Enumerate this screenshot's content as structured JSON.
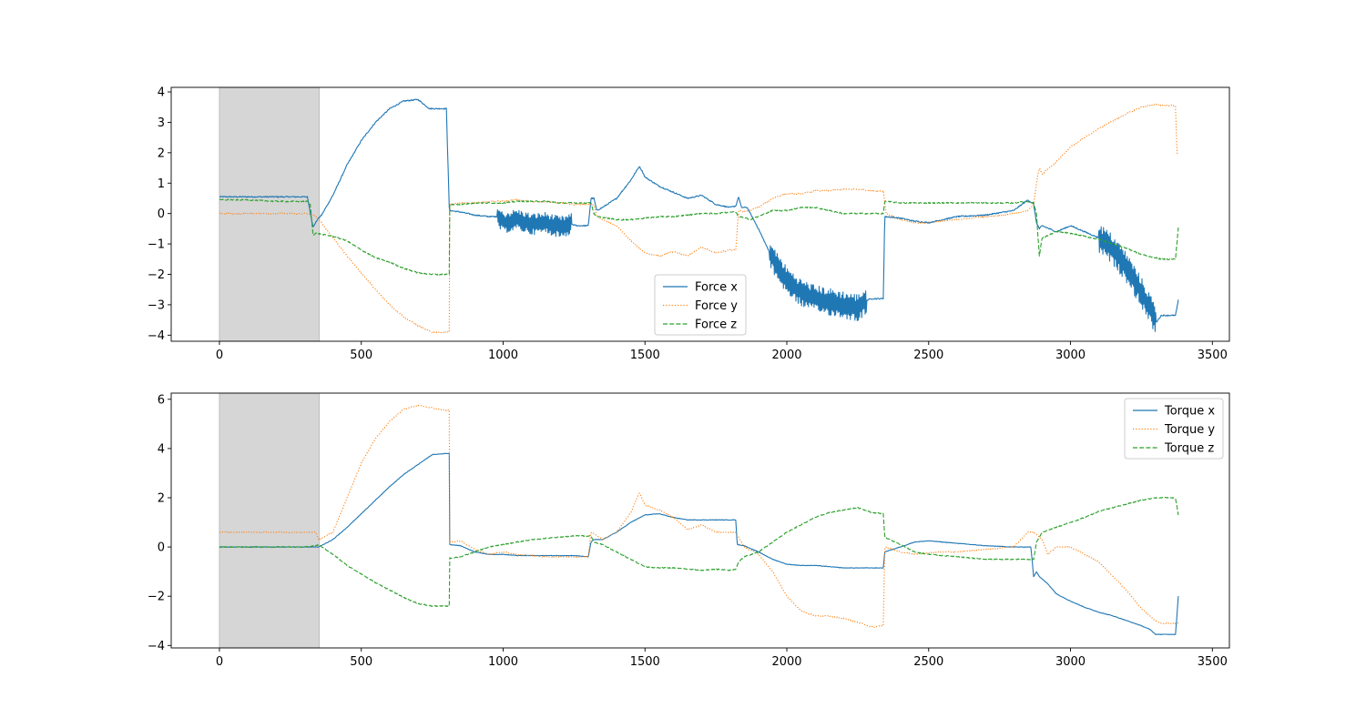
{
  "colors": {
    "x": "#1f77b4",
    "y": "#ff7f0e",
    "z": "#2ca02c",
    "shade": "#d6d6d6"
  },
  "chart_data": [
    {
      "type": "line",
      "title": "",
      "xlabel": "",
      "ylabel": "",
      "xlim": [
        -170,
        3560
      ],
      "ylim": [
        -4.2,
        4.15
      ],
      "xticks": [
        0,
        500,
        1000,
        1500,
        2000,
        2500,
        3000,
        3500
      ],
      "yticks": [
        -4,
        -3,
        -2,
        -1,
        0,
        1,
        2,
        3,
        4
      ],
      "shaded_region": [
        0,
        352
      ],
      "legend_position": "lower-center",
      "series": [
        {
          "name": "Force x",
          "style": "solid",
          "color_key": "x",
          "noise": 0.02,
          "x": [
            0,
            100,
            200,
            300,
            310,
            330,
            345,
            360,
            400,
            450,
            500,
            550,
            600,
            650,
            700,
            740,
            760,
            800,
            810,
            812,
            850,
            900,
            950,
            980,
            1000,
            1050,
            1100,
            1150,
            1200,
            1240,
            1260,
            1300,
            1310,
            1320,
            1330,
            1350,
            1400,
            1450,
            1480,
            1490,
            1500,
            1550,
            1600,
            1650,
            1700,
            1750,
            1800,
            1820,
            1830,
            1840,
            1860,
            1900,
            1950,
            2000,
            2050,
            2100,
            2150,
            2200,
            2250,
            2280,
            2300,
            2340,
            2345,
            2400,
            2450,
            2500,
            2550,
            2600,
            2700,
            2800,
            2850,
            2870,
            2880,
            2890,
            2900,
            2950,
            3000,
            3050,
            3100,
            3150,
            3200,
            3250,
            3290,
            3300,
            3320,
            3370,
            3380
          ],
          "y": [
            0.55,
            0.55,
            0.55,
            0.55,
            0.55,
            -0.45,
            -0.2,
            -0.05,
            0.6,
            1.6,
            2.4,
            3.0,
            3.45,
            3.7,
            3.75,
            3.45,
            3.45,
            3.45,
            0.2,
            0.1,
            0.05,
            -0.05,
            -0.1,
            -0.1,
            -0.3,
            -0.2,
            -0.35,
            -0.3,
            -0.45,
            -0.35,
            -0.4,
            -0.4,
            0.5,
            0.5,
            0.1,
            0.2,
            0.5,
            1.1,
            1.55,
            1.4,
            1.2,
            0.9,
            0.7,
            0.5,
            0.6,
            0.3,
            0.2,
            0.25,
            0.55,
            0.2,
            0.2,
            -0.5,
            -1.5,
            -2.2,
            -2.6,
            -2.8,
            -2.9,
            -3.0,
            -3.1,
            -2.85,
            -2.8,
            -2.8,
            -0.1,
            -0.15,
            -0.25,
            -0.3,
            -0.2,
            -0.1,
            -0.05,
            0.1,
            0.45,
            0.3,
            -0.3,
            -0.5,
            -0.4,
            -0.6,
            -0.4,
            -0.6,
            -0.8,
            -1.2,
            -1.8,
            -2.6,
            -3.3,
            -3.6,
            -3.35,
            -3.35,
            -2.85
          ],
          "jitter": [
            [
              980,
              1240,
              0.35
            ],
            [
              1940,
              2280,
              0.45
            ],
            [
              3100,
              3300,
              0.5
            ]
          ]
        },
        {
          "name": "Force y",
          "style": "dotted",
          "color_key": "y",
          "noise": 0.02,
          "x": [
            0,
            100,
            200,
            300,
            310,
            340,
            360,
            400,
            450,
            500,
            550,
            600,
            650,
            700,
            750,
            800,
            810,
            812,
            850,
            900,
            950,
            1000,
            1050,
            1100,
            1150,
            1200,
            1250,
            1300,
            1310,
            1320,
            1330,
            1350,
            1400,
            1450,
            1500,
            1550,
            1600,
            1650,
            1700,
            1750,
            1800,
            1820,
            1830,
            1850,
            1900,
            1950,
            2000,
            2050,
            2100,
            2150,
            2200,
            2250,
            2300,
            2340,
            2350,
            2400,
            2450,
            2500,
            2600,
            2700,
            2800,
            2850,
            2870,
            2880,
            2890,
            2900,
            2950,
            3000,
            3050,
            3100,
            3150,
            3200,
            3250,
            3300,
            3320,
            3370,
            3375,
            3380
          ],
          "y": [
            0.0,
            0.0,
            0.0,
            0.0,
            0.0,
            -0.1,
            -0.3,
            -0.8,
            -1.4,
            -1.95,
            -2.5,
            -3.0,
            -3.4,
            -3.7,
            -3.9,
            -3.9,
            -3.9,
            0.3,
            0.35,
            0.35,
            0.4,
            0.4,
            0.45,
            0.4,
            0.4,
            0.35,
            0.3,
            0.3,
            0.3,
            0.3,
            -0.1,
            -0.2,
            -0.4,
            -0.9,
            -1.3,
            -1.4,
            -1.25,
            -1.4,
            -1.1,
            -1.3,
            -1.2,
            -1.2,
            0.1,
            0.05,
            0.2,
            0.5,
            0.65,
            0.65,
            0.75,
            0.75,
            0.8,
            0.8,
            0.75,
            0.75,
            0.0,
            -0.2,
            -0.3,
            -0.3,
            -0.2,
            -0.1,
            0.0,
            0.1,
            0.3,
            1.0,
            1.5,
            1.3,
            1.7,
            2.2,
            2.5,
            2.8,
            3.05,
            3.3,
            3.5,
            3.6,
            3.55,
            3.55,
            2.0,
            1.95
          ]
        },
        {
          "name": "Force z",
          "style": "dashed",
          "color_key": "z",
          "noise": 0.02,
          "x": [
            0,
            100,
            200,
            300,
            310,
            320,
            330,
            340,
            400,
            450,
            500,
            550,
            600,
            650,
            700,
            750,
            800,
            810,
            812,
            850,
            900,
            950,
            1000,
            1050,
            1100,
            1150,
            1200,
            1250,
            1300,
            1310,
            1320,
            1330,
            1400,
            1450,
            1500,
            1550,
            1600,
            1650,
            1700,
            1750,
            1800,
            1820,
            1830,
            1840,
            1870,
            1900,
            1950,
            2000,
            2050,
            2100,
            2150,
            2200,
            2250,
            2300,
            2340,
            2345,
            2400,
            2500,
            2600,
            2700,
            2800,
            2850,
            2870,
            2880,
            2890,
            2900,
            2950,
            3000,
            3050,
            3100,
            3150,
            3200,
            3250,
            3300,
            3320,
            3370,
            3380
          ],
          "y": [
            0.45,
            0.45,
            0.4,
            0.4,
            0.4,
            0.3,
            -0.7,
            -0.65,
            -0.75,
            -0.9,
            -1.2,
            -1.45,
            -1.6,
            -1.8,
            -1.95,
            -2.0,
            -2.0,
            -2.0,
            0.3,
            0.3,
            0.35,
            0.35,
            0.35,
            0.4,
            0.4,
            0.4,
            0.35,
            0.35,
            0.35,
            0.35,
            0.0,
            -0.1,
            -0.2,
            -0.2,
            -0.15,
            -0.1,
            -0.1,
            -0.05,
            0.0,
            0.0,
            0.05,
            0.05,
            -0.1,
            -0.1,
            -0.2,
            -0.1,
            0.1,
            0.1,
            0.2,
            0.2,
            0.1,
            0.0,
            0.0,
            0.0,
            0.0,
            0.4,
            0.35,
            0.35,
            0.35,
            0.35,
            0.35,
            0.4,
            0.35,
            0.0,
            -1.4,
            -0.8,
            -0.6,
            -0.65,
            -0.75,
            -0.85,
            -1.0,
            -1.15,
            -1.35,
            -1.45,
            -1.5,
            -1.5,
            -0.45
          ]
        }
      ]
    },
    {
      "type": "line",
      "title": "",
      "xlabel": "",
      "ylabel": "",
      "xlim": [
        -170,
        3560
      ],
      "ylim": [
        -4.1,
        6.25
      ],
      "xticks": [
        0,
        500,
        1000,
        1500,
        2000,
        2500,
        3000,
        3500
      ],
      "yticks": [
        -4,
        -2,
        0,
        2,
        4,
        6
      ],
      "shaded_region": [
        0,
        352
      ],
      "legend_position": "upper-right",
      "series": [
        {
          "name": "Torque x",
          "style": "solid",
          "color_key": "x",
          "noise": 0.01,
          "x": [
            0,
            100,
            200,
            300,
            340,
            350,
            400,
            450,
            500,
            550,
            600,
            650,
            700,
            750,
            800,
            810,
            812,
            850,
            900,
            950,
            1000,
            1050,
            1100,
            1150,
            1200,
            1250,
            1300,
            1310,
            1320,
            1350,
            1400,
            1450,
            1500,
            1550,
            1600,
            1650,
            1700,
            1750,
            1800,
            1820,
            1825,
            1850,
            1900,
            1950,
            2000,
            2050,
            2100,
            2150,
            2200,
            2250,
            2300,
            2340,
            2345,
            2400,
            2450,
            2500,
            2550,
            2600,
            2700,
            2800,
            2850,
            2860,
            2870,
            2880,
            2890,
            2900,
            2920,
            2950,
            3000,
            3050,
            3100,
            3150,
            3200,
            3250,
            3280,
            3300,
            3320,
            3370,
            3380
          ],
          "y": [
            0.0,
            0.0,
            0.0,
            0.0,
            0.0,
            0.0,
            0.3,
            0.8,
            1.35,
            1.9,
            2.45,
            2.95,
            3.35,
            3.75,
            3.8,
            3.8,
            0.1,
            0.05,
            -0.2,
            -0.3,
            -0.3,
            -0.35,
            -0.35,
            -0.35,
            -0.35,
            -0.35,
            -0.4,
            0.2,
            0.3,
            0.3,
            0.6,
            1.0,
            1.3,
            1.35,
            1.2,
            1.1,
            1.1,
            1.1,
            1.1,
            1.1,
            0.1,
            0.05,
            -0.2,
            -0.5,
            -0.7,
            -0.75,
            -0.75,
            -0.8,
            -0.85,
            -0.85,
            -0.85,
            -0.85,
            -0.2,
            0.0,
            0.2,
            0.25,
            0.2,
            0.15,
            0.05,
            0.0,
            0.0,
            0.0,
            -1.2,
            -1.0,
            -1.2,
            -1.3,
            -1.5,
            -1.9,
            -2.2,
            -2.45,
            -2.65,
            -2.8,
            -3.0,
            -3.2,
            -3.35,
            -3.55,
            -3.55,
            -3.55,
            -2.0
          ]
        },
        {
          "name": "Torque y",
          "style": "dotted",
          "color_key": "y",
          "noise": 0.02,
          "x": [
            0,
            100,
            200,
            300,
            340,
            350,
            400,
            450,
            500,
            550,
            600,
            650,
            700,
            750,
            800,
            810,
            812,
            850,
            900,
            950,
            1000,
            1050,
            1100,
            1150,
            1200,
            1250,
            1300,
            1310,
            1320,
            1350,
            1400,
            1450,
            1480,
            1500,
            1550,
            1600,
            1650,
            1700,
            1750,
            1800,
            1820,
            1830,
            1850,
            1900,
            1950,
            2000,
            2050,
            2100,
            2150,
            2200,
            2250,
            2300,
            2340,
            2345,
            2400,
            2450,
            2500,
            2550,
            2600,
            2700,
            2800,
            2850,
            2870,
            2900,
            2920,
            2950,
            3000,
            3050,
            3100,
            3150,
            3200,
            3250,
            3300,
            3320,
            3370,
            3380
          ],
          "y": [
            0.6,
            0.6,
            0.6,
            0.6,
            0.6,
            0.3,
            0.6,
            2.0,
            3.4,
            4.4,
            5.1,
            5.6,
            5.75,
            5.65,
            5.55,
            5.55,
            0.2,
            0.25,
            -0.1,
            -0.3,
            -0.2,
            -0.3,
            -0.35,
            -0.4,
            -0.4,
            -0.4,
            -0.4,
            0.6,
            0.55,
            0.3,
            0.6,
            1.4,
            2.2,
            1.7,
            1.5,
            1.2,
            0.7,
            0.9,
            0.6,
            0.6,
            0.6,
            0.4,
            0.0,
            -0.3,
            -1.0,
            -2.0,
            -2.6,
            -2.8,
            -2.8,
            -2.9,
            -3.05,
            -3.25,
            -3.2,
            0.0,
            -0.2,
            -0.3,
            -0.25,
            -0.2,
            -0.2,
            -0.1,
            0.0,
            0.6,
            0.6,
            0.3,
            -0.3,
            0.0,
            0.0,
            -0.3,
            -0.6,
            -1.2,
            -1.8,
            -2.5,
            -3.0,
            -3.1,
            -3.1,
            -3.1
          ]
        },
        {
          "name": "Torque z",
          "style": "dashed",
          "color_key": "z",
          "noise": 0.02,
          "x": [
            0,
            100,
            200,
            300,
            340,
            350,
            400,
            450,
            500,
            550,
            600,
            650,
            700,
            750,
            800,
            810,
            812,
            850,
            900,
            950,
            1000,
            1050,
            1100,
            1150,
            1200,
            1250,
            1300,
            1310,
            1320,
            1350,
            1400,
            1450,
            1500,
            1550,
            1600,
            1650,
            1700,
            1750,
            1800,
            1820,
            1830,
            1850,
            1900,
            1950,
            2000,
            2050,
            2100,
            2150,
            2200,
            2250,
            2300,
            2340,
            2345,
            2400,
            2450,
            2500,
            2550,
            2600,
            2700,
            2800,
            2850,
            2870,
            2880,
            2900,
            2950,
            3000,
            3050,
            3100,
            3150,
            3200,
            3250,
            3300,
            3320,
            3370,
            3380
          ],
          "y": [
            0.0,
            0.0,
            0.0,
            0.0,
            0.05,
            0.1,
            -0.3,
            -0.75,
            -1.1,
            -1.45,
            -1.75,
            -2.05,
            -2.3,
            -2.4,
            -2.4,
            -2.4,
            -0.45,
            -0.4,
            -0.2,
            0.0,
            0.1,
            0.2,
            0.3,
            0.35,
            0.4,
            0.45,
            0.45,
            0.45,
            0.2,
            0.1,
            -0.2,
            -0.5,
            -0.8,
            -0.85,
            -0.85,
            -0.9,
            -0.95,
            -0.9,
            -0.95,
            -0.9,
            -0.6,
            -0.4,
            -0.2,
            0.2,
            0.6,
            0.9,
            1.2,
            1.4,
            1.5,
            1.6,
            1.4,
            1.35,
            0.4,
            0.1,
            -0.2,
            -0.3,
            -0.35,
            -0.4,
            -0.5,
            -0.5,
            -0.5,
            -0.5,
            0.2,
            0.6,
            0.8,
            1.0,
            1.2,
            1.45,
            1.6,
            1.75,
            1.9,
            2.0,
            2.0,
            2.0,
            1.3
          ]
        }
      ]
    }
  ]
}
